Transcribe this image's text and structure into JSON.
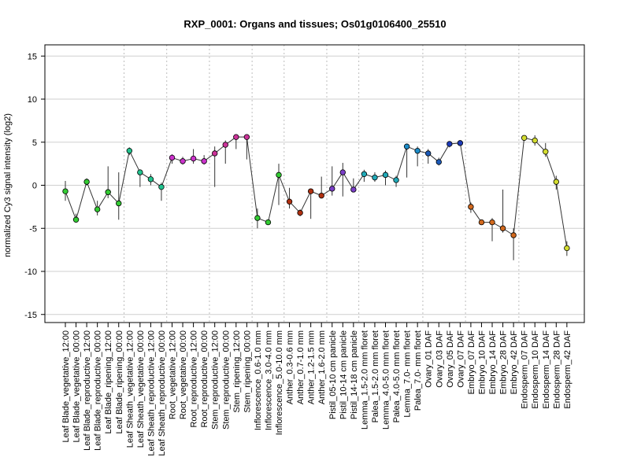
{
  "chart_data": {
    "type": "line",
    "title": "RXP_0001: Organs and tissues; Os01g0106400_25510",
    "xlabel": "",
    "ylabel": "normalized Cy3 signal intensity (log2)",
    "ylim": [
      -16,
      16
    ],
    "yticks": [
      -15,
      -10,
      -5,
      0,
      5,
      10,
      15
    ],
    "grid": true,
    "categories": [
      "Leaf Blade_vegetative_12:00",
      "Leaf Blade_vegetative_00:00",
      "Leaf Blade_reproductive_12:00",
      "Leaf Blade_reproductive_00:00",
      "Leaf Blade_ripening_12:00",
      "Leaf Blade_ripening_00:00",
      "Leaf Sheath_vegetative_12:00",
      "Leaf Sheath_vegetative_00:00",
      "Leaf Sheath_reproductive_12:00",
      "Leaf Sheath_reproductive_00:00",
      "Root_vegetative_12:00",
      "Root_vegetative_00:00",
      "Root_reproductive_12:00",
      "Root_reproductive_00:00",
      "Stem_reproductive_12:00",
      "Stem_reproductive_00:00",
      "Stem_ripening_12:00",
      "Stem_ripening_00:00",
      "Inflorescence_0.6-1.0 mm",
      "Inflorescence_3.0-4.0 mm",
      "Inflorescence_5.0-10.0 mm",
      "Anther_0.3-0.6 mm",
      "Anther_0.7-1.0 mm",
      "Anther_1.2-1.5 mm",
      "Anther_1.6-2.0 mm",
      "Pistil_05-10 cm panicle",
      "Pistil_10-14 cm panicle",
      "Pistil_14-18 cm panicle",
      "Lemma_1.5-2.0 mm floret",
      "Palea_1.5-2.0 mm floret",
      "Lemma_4.0-5.0 mm floret",
      "Palea_4.0-5.0 mm floret",
      "Lemma_7.0- mm floret",
      "Palea_7.0- mm floret",
      "Ovary_01 DAF",
      "Ovary_03 DAF",
      "Ovary_05 DAF",
      "Ovary_07 DAF",
      "Embryo_07 DAF",
      "Embryo_10 DAF",
      "Embryo_14 DAF",
      "Embryo_28 DAF",
      "Embryo_42 DAF",
      "Endosperm_07 DAF",
      "Endosperm_10 DAF",
      "Endosperm_14 DAF",
      "Endosperm_28 DAF",
      "Endosperm_42 DAF"
    ],
    "values": [
      -0.7,
      -4.0,
      0.4,
      -2.8,
      -0.8,
      -2.1,
      4.0,
      1.5,
      0.7,
      -0.2,
      3.2,
      2.8,
      3.1,
      2.8,
      3.7,
      4.7,
      5.6,
      5.6,
      -3.8,
      -4.3,
      1.2,
      -1.9,
      -3.2,
      -0.7,
      -1.2,
      -0.4,
      1.5,
      -0.5,
      1.3,
      0.9,
      1.2,
      0.6,
      4.5,
      4.0,
      3.7,
      2.7,
      4.8,
      4.9,
      -2.5,
      -4.3,
      -4.3,
      -5.0,
      -5.8,
      5.5,
      5.2,
      3.9,
      0.4,
      -7.3
    ],
    "error_low": [
      -1.8,
      -4.3,
      0.0,
      -3.5,
      -1.5,
      -4.0,
      3.5,
      -0.2,
      0.0,
      -1.8,
      2.5,
      2.4,
      2.5,
      2.4,
      -0.2,
      2.5,
      4.2,
      3.0,
      -5.0,
      -4.5,
      -2.3,
      -2.7,
      -3.6,
      -3.9,
      -1.5,
      -1.2,
      -1.3,
      -0.8,
      0.4,
      0.4,
      0.0,
      -0.2,
      0.9,
      2.2,
      2.5,
      2.3,
      4.4,
      4.6,
      -3.2,
      -4.5,
      -6.5,
      -5.5,
      -8.7,
      5.2,
      4.6,
      3.3,
      -0.5,
      -8.2
    ],
    "error_high": [
      0.5,
      -3.3,
      0.8,
      -1.8,
      2.2,
      1.5,
      4.4,
      1.8,
      1.3,
      0.3,
      3.6,
      3.3,
      4.2,
      3.5,
      4.5,
      5.2,
      5.9,
      5.9,
      -2.7,
      -4.1,
      2.5,
      -0.3,
      -2.8,
      -0.4,
      1.0,
      2.2,
      2.6,
      0.8,
      1.8,
      1.5,
      1.7,
      1.1,
      4.8,
      4.5,
      4.2,
      3.2,
      5.1,
      5.2,
      -2.0,
      -4.0,
      -3.8,
      -0.5,
      -5.0,
      5.8,
      5.8,
      4.9,
      1.1,
      -6.5
    ],
    "point_colors": [
      "#33cc33",
      "#33cc33",
      "#33cc33",
      "#33cc33",
      "#33cc33",
      "#33cc33",
      "#21c48f",
      "#21c48f",
      "#21c48f",
      "#21c48f",
      "#cc33cc",
      "#cc33cc",
      "#cc33cc",
      "#cc33cc",
      "#cc3399",
      "#cc3399",
      "#cc3399",
      "#cc3399",
      "#33cc33",
      "#33cc33",
      "#33cc33",
      "#b03010",
      "#b03010",
      "#b03010",
      "#b03010",
      "#7b3fc8",
      "#7b3fc8",
      "#7b3fc8",
      "#21aab8",
      "#21aab8",
      "#21aab8",
      "#21aab8",
      "#1c8cc8",
      "#1c8cc8",
      "#1c5ab8",
      "#1c5ab8",
      "#1c3ab8",
      "#1c3ab8",
      "#d2691e",
      "#d2691e",
      "#d2691e",
      "#d2691e",
      "#d2691e",
      "#d4dd30",
      "#d4dd30",
      "#d4dd30",
      "#d4dd30",
      "#d4dd30"
    ],
    "dashed_group_separators_after": [
      5,
      9,
      13,
      17,
      20,
      24,
      27,
      33,
      37,
      42
    ]
  }
}
